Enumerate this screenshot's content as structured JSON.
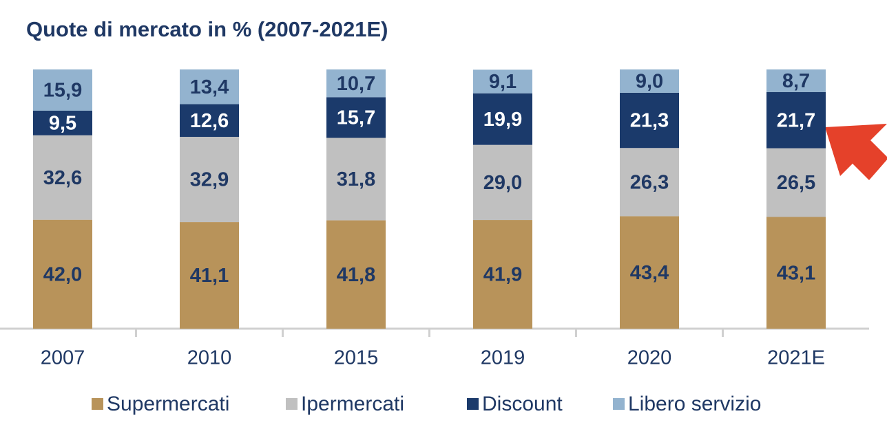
{
  "chart_data": {
    "type": "stacked_bar",
    "title": "Quote di mercato in % (2007-2021E)",
    "categories": [
      "2007",
      "2010",
      "2015",
      "2019",
      "2020",
      "2021E"
    ],
    "ylim": [
      0,
      100
    ],
    "series": [
      {
        "name": "Supermercati",
        "color": "#b8935a",
        "label_color": "#1f3864",
        "values": [
          42.0,
          41.1,
          41.8,
          41.9,
          43.4,
          43.1
        ],
        "value_labels": [
          "42,0",
          "41,1",
          "41,8",
          "41,9",
          "43,4",
          "43,1"
        ]
      },
      {
        "name": "Ipermercati",
        "color": "#c0c0c0",
        "label_color": "#1f3864",
        "values": [
          32.6,
          32.9,
          31.8,
          29.0,
          26.3,
          26.5
        ],
        "value_labels": [
          "32,6",
          "32,9",
          "31,8",
          "29,0",
          "26,3",
          "26,5"
        ]
      },
      {
        "name": "Discount",
        "color": "#1b3a6b",
        "label_color": "#ffffff",
        "values": [
          9.5,
          12.6,
          15.7,
          19.9,
          21.3,
          21.7
        ],
        "value_labels": [
          "9,5",
          "12,6",
          "15,7",
          "19,9",
          "21,3",
          "21,7"
        ]
      },
      {
        "name": "Libero servizio",
        "color": "#93b3cf",
        "label_color": "#1f3864",
        "values": [
          15.9,
          13.4,
          10.7,
          9.1,
          9.0,
          8.7
        ],
        "value_labels": [
          "15,9",
          "13,4",
          "10,7",
          "9,1",
          "9,0",
          "8,7"
        ]
      }
    ]
  }
}
